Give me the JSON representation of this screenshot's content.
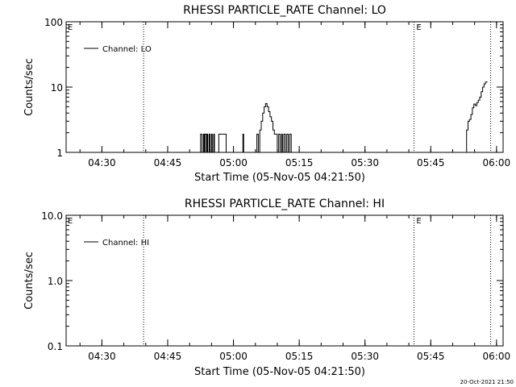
{
  "chart_data": [
    {
      "type": "line",
      "title": "RHESSI PARTICLE_RATE Channel: LO",
      "xlabel": "Start Time (05-Nov-05 04:21:50)",
      "ylabel": "Counts/sec",
      "y_scale": "log",
      "ylim": [
        1,
        100
      ],
      "xlim": [
        "04:21:50",
        "06:01:30"
      ],
      "x_ticks": [
        "04:30",
        "04:45",
        "05:00",
        "05:15",
        "05:30",
        "05:45",
        "06:00"
      ],
      "y_ticks": [
        "1",
        "10",
        "100"
      ],
      "grid": false,
      "legend_position": "top-left",
      "markers": [
        {
          "time": "04:39:30",
          "label": ""
        },
        {
          "time": "05:41:10",
          "label": "E"
        },
        {
          "time": "05:58:40",
          "label": ""
        }
      ],
      "series": [
        {
          "name": "Channel: LO",
          "x": [
            "04:21:50",
            "04:52:20",
            "04:52:30",
            "04:52:50",
            "04:53:10",
            "04:53:20",
            "04:53:30",
            "04:53:50",
            "04:54:00",
            "04:54:10",
            "04:54:30",
            "04:54:40",
            "04:55:00",
            "04:55:10",
            "04:55:30",
            "04:55:40",
            "04:56:20",
            "04:56:40",
            "04:57:00",
            "04:57:10",
            "04:57:50",
            "04:58:10",
            "04:58:20",
            "05:02:00",
            "05:02:10",
            "05:02:20",
            "05:02:40",
            "05:05:00",
            "05:05:20",
            "05:05:40",
            "05:06:00",
            "05:06:20",
            "05:06:40",
            "05:07:00",
            "05:07:20",
            "05:07:40",
            "05:08:00",
            "05:08:20",
            "05:08:40",
            "05:09:00",
            "05:09:20",
            "05:09:40",
            "05:10:00",
            "05:10:20",
            "05:10:40",
            "05:11:00",
            "05:11:10",
            "05:11:30",
            "05:11:50",
            "05:12:10",
            "05:12:30",
            "05:12:50",
            "05:13:10",
            "05:13:30",
            "05:52:50",
            "05:53:10",
            "05:53:30",
            "05:53:50",
            "05:54:10",
            "05:54:30",
            "05:54:50",
            "05:55:10",
            "05:55:30",
            "05:55:50",
            "05:56:10",
            "05:56:30",
            "05:56:50",
            "05:57:10",
            "05:57:30",
            "05:57:50"
          ],
          "y": [
            1,
            1,
            1.9,
            1,
            1.9,
            1,
            1.9,
            1,
            1.9,
            1,
            1.9,
            1,
            1.9,
            1,
            1.9,
            1,
            1,
            1.9,
            1.9,
            1.9,
            1.9,
            1.9,
            1,
            1,
            1.9,
            1,
            1,
            1,
            1.9,
            1,
            2.2,
            3,
            4,
            5,
            5.6,
            5,
            4.2,
            3.5,
            3,
            2.2,
            1.9,
            1.9,
            1,
            1.9,
            1,
            1.9,
            1,
            1.9,
            1,
            1.9,
            1,
            1.9,
            1,
            1,
            1,
            2.2,
            3,
            3.2,
            3.8,
            4.8,
            5.5,
            5.2,
            5.8,
            6.3,
            7,
            8.5,
            10,
            11.2,
            12,
            11.8
          ]
        }
      ]
    },
    {
      "type": "line",
      "title": "RHESSI PARTICLE_RATE Channel: HI",
      "xlabel": "Start Time (05-Nov-05 04:21:50)",
      "ylabel": "Counts/sec",
      "y_scale": "log",
      "ylim": [
        0.1,
        10
      ],
      "xlim": [
        "04:21:50",
        "06:01:30"
      ],
      "x_ticks": [
        "04:30",
        "04:45",
        "05:00",
        "05:15",
        "05:30",
        "05:45",
        "06:00"
      ],
      "y_ticks": [
        "0.1",
        "1.0",
        "10.0"
      ],
      "grid": false,
      "legend_position": "top-left",
      "markers": [
        {
          "time": "04:39:30",
          "label": ""
        },
        {
          "time": "05:41:10",
          "label": "E"
        },
        {
          "time": "05:58:40",
          "label": ""
        }
      ],
      "series": [
        {
          "name": "Channel: HI",
          "x": [],
          "y": []
        }
      ]
    }
  ],
  "corner_labels": {
    "top": "E",
    "bottom": "E"
  },
  "timestamp": "20-Oct-2021 21:50"
}
